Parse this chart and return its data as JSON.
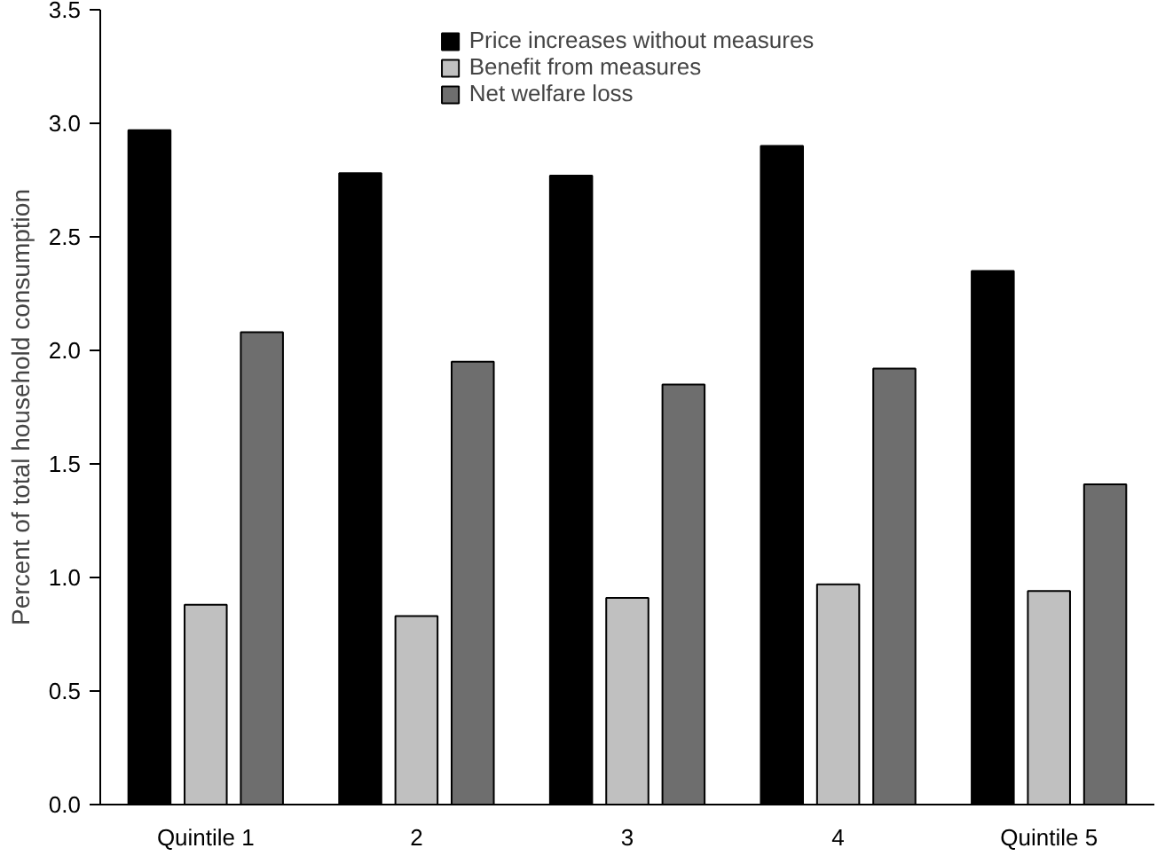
{
  "chart_data": {
    "type": "bar",
    "ylabel": "Percent of total household consumption",
    "categories": [
      "Quintile 1",
      "2",
      "3",
      "4",
      "Quintile 5"
    ],
    "series": [
      {
        "name": "Price increases without measures",
        "color": "#000000",
        "values": [
          2.97,
          2.78,
          2.77,
          2.9,
          2.35
        ]
      },
      {
        "name": "Benefit from measures",
        "color": "#c0c0c0",
        "values": [
          0.88,
          0.83,
          0.91,
          0.97,
          0.94
        ]
      },
      {
        "name": "Net welfare loss",
        "color": "#6e6e6e",
        "values": [
          2.08,
          1.95,
          1.85,
          1.92,
          1.41
        ]
      }
    ],
    "ylim": [
      0,
      3.5
    ],
    "yticks": [
      {
        "value": 0,
        "label": "0.0"
      },
      0.5,
      {
        "value": 1,
        "label": "1.0"
      },
      1.5,
      {
        "value": 2,
        "label": "2.0"
      },
      2.5,
      {
        "value": 3,
        "label": "3.0"
      },
      3.5
    ],
    "grid": false,
    "legend": "top"
  }
}
